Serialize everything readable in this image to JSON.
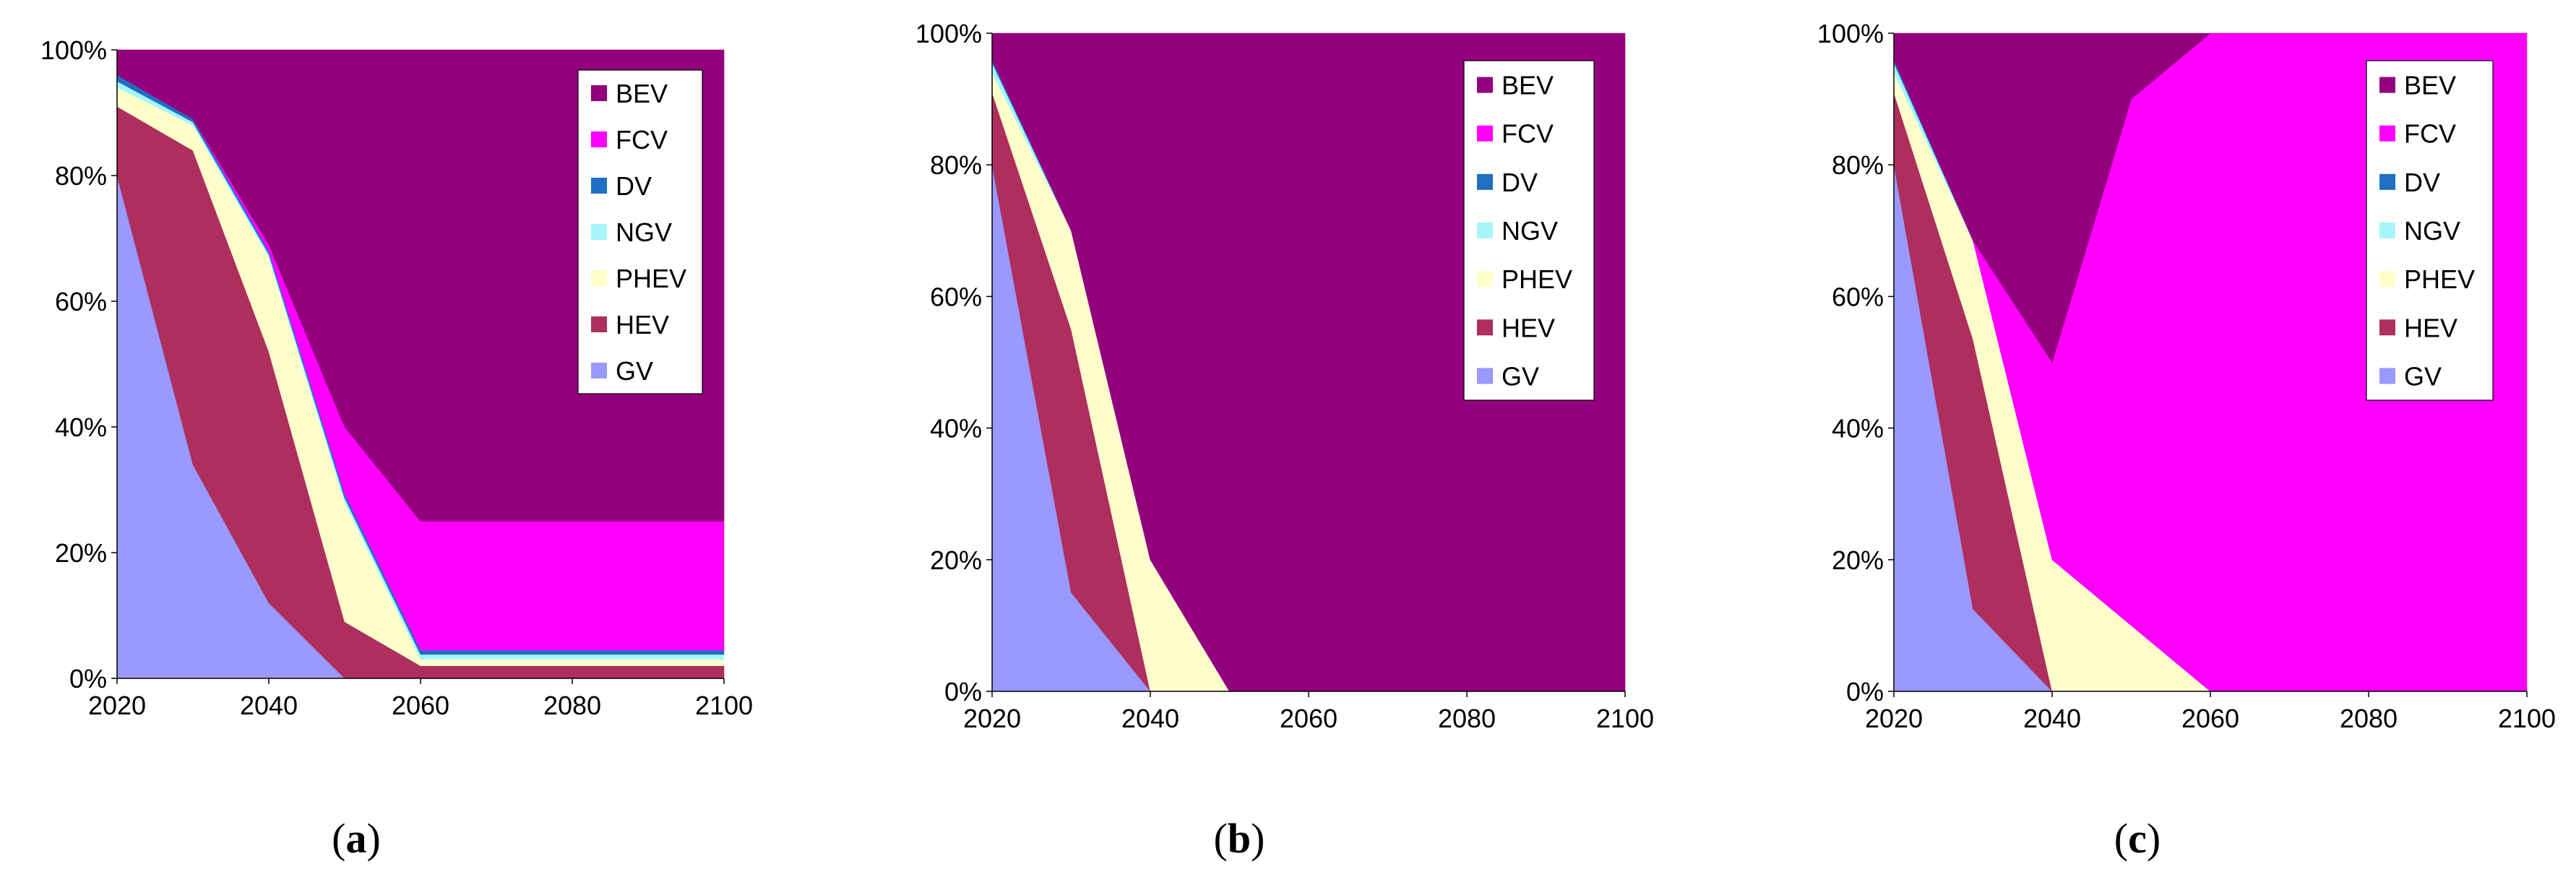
{
  "chart_data": [
    {
      "type": "area",
      "caption": "a",
      "stacked": true,
      "x": [
        2020,
        2030,
        2040,
        2050,
        2060,
        2070,
        2080,
        2090,
        2100
      ],
      "x_ticks": [
        "2020",
        "2040",
        "2060",
        "2080",
        "2100"
      ],
      "ylim": [
        0,
        100
      ],
      "y_ticks": [
        "0%",
        "20%",
        "40%",
        "60%",
        "80%",
        "100%"
      ],
      "legend_position": "top-right",
      "series": [
        {
          "name": "GV",
          "color": "#9999FF",
          "values": [
            80,
            34,
            12,
            0,
            0,
            0,
            0,
            0,
            0
          ]
        },
        {
          "name": "HEV",
          "color": "#AE2E5E",
          "values": [
            11,
            50,
            40,
            9,
            2,
            2,
            2,
            2,
            2
          ]
        },
        {
          "name": "PHEV",
          "color": "#FFFFCC",
          "values": [
            3,
            4,
            15,
            19,
            1,
            1,
            1,
            1,
            1
          ]
        },
        {
          "name": "NGV",
          "color": "#A6F6FA",
          "values": [
            1,
            0.5,
            0.5,
            0.7,
            0.8,
            0.8,
            0.8,
            0.8,
            0.8
          ]
        },
        {
          "name": "DV",
          "color": "#1F6FC5",
          "values": [
            1,
            0.5,
            0.5,
            0.7,
            0.7,
            0.7,
            0.7,
            0.7,
            0.7
          ]
        },
        {
          "name": "FCV",
          "color": "#FF00FF",
          "values": [
            0,
            0,
            1,
            10.6,
            20.5,
            20.5,
            20.5,
            20.5,
            20.5
          ]
        },
        {
          "name": "BEV",
          "color": "#93007D",
          "values": [
            4,
            11,
            31,
            60,
            75,
            75,
            75,
            75,
            75
          ]
        }
      ]
    },
    {
      "type": "area",
      "caption": "b",
      "stacked": true,
      "x": [
        2020,
        2030,
        2040,
        2050,
        2060,
        2070,
        2080,
        2090,
        2100
      ],
      "x_ticks": [
        "2020",
        "2040",
        "2060",
        "2080",
        "2100"
      ],
      "ylim": [
        0,
        100
      ],
      "y_ticks": [
        "0%",
        "20%",
        "40%",
        "60%",
        "80%",
        "100%"
      ],
      "legend_position": "top-right",
      "series": [
        {
          "name": "GV",
          "color": "#9999FF",
          "values": [
            80,
            15,
            0,
            0,
            0,
            0,
            0,
            0,
            0
          ]
        },
        {
          "name": "HEV",
          "color": "#AE2E5E",
          "values": [
            11,
            40,
            0,
            0,
            0,
            0,
            0,
            0,
            0
          ]
        },
        {
          "name": "PHEV",
          "color": "#FFFFCC",
          "values": [
            3,
            15,
            20,
            0,
            0,
            0,
            0,
            0,
            0
          ]
        },
        {
          "name": "NGV",
          "color": "#A6F6FA",
          "values": [
            1.5,
            0,
            0,
            0,
            0,
            0,
            0,
            0,
            0
          ]
        },
        {
          "name": "DV",
          "color": "#1F6FC5",
          "values": [
            0.5,
            0,
            0,
            0,
            0,
            0,
            0,
            0,
            0
          ]
        },
        {
          "name": "FCV",
          "color": "#FF00FF",
          "values": [
            0,
            0,
            0,
            0,
            0,
            0,
            0,
            0,
            0
          ]
        },
        {
          "name": "BEV",
          "color": "#93007D",
          "values": [
            4,
            30,
            80,
            100,
            100,
            100,
            100,
            100,
            100
          ]
        }
      ]
    },
    {
      "type": "area",
      "caption": "c",
      "stacked": true,
      "x": [
        2020,
        2030,
        2040,
        2050,
        2060,
        2070,
        2080,
        2090,
        2100
      ],
      "x_ticks": [
        "2020",
        "2040",
        "2060",
        "2080",
        "2100"
      ],
      "ylim": [
        0,
        100
      ],
      "y_ticks": [
        "0%",
        "20%",
        "40%",
        "60%",
        "80%",
        "100%"
      ],
      "legend_position": "top-right",
      "series": [
        {
          "name": "GV",
          "color": "#9999FF",
          "values": [
            80,
            12.5,
            0,
            0,
            0,
            0,
            0,
            0,
            0
          ]
        },
        {
          "name": "HEV",
          "color": "#AE2E5E",
          "values": [
            11,
            41,
            0,
            0,
            0,
            0,
            0,
            0,
            0
          ]
        },
        {
          "name": "PHEV",
          "color": "#FFFFCC",
          "values": [
            3,
            15,
            20,
            10,
            0,
            0,
            0,
            0,
            0
          ]
        },
        {
          "name": "NGV",
          "color": "#A6F6FA",
          "values": [
            1.5,
            0,
            0,
            0,
            0,
            0,
            0,
            0,
            0
          ]
        },
        {
          "name": "DV",
          "color": "#1F6FC5",
          "values": [
            0.5,
            0,
            0,
            0,
            0,
            0,
            0,
            0,
            0
          ]
        },
        {
          "name": "FCV",
          "color": "#FF00FF",
          "values": [
            0,
            0,
            30,
            80,
            100,
            100,
            100,
            100,
            100
          ]
        },
        {
          "name": "BEV",
          "color": "#93007D",
          "values": [
            4,
            31.5,
            50,
            10,
            0,
            0,
            0,
            0,
            0
          ]
        }
      ]
    }
  ],
  "captions": [
    {
      "open": "(",
      "letter": "a",
      "close": ")"
    },
    {
      "open": "(",
      "letter": "b",
      "close": ")"
    },
    {
      "open": "(",
      "letter": "c",
      "close": ")"
    }
  ]
}
